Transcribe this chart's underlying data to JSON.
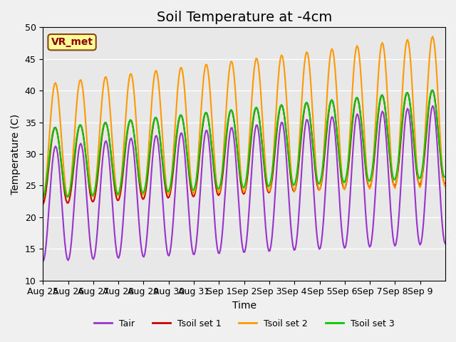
{
  "title": "Soil Temperature at -4cm",
  "xlabel": "Time",
  "ylabel": "Temperature (C)",
  "ylim": [
    10,
    50
  ],
  "n_days": 16,
  "annotation_text": "VR_met",
  "series_colors": {
    "Tair": "#9933cc",
    "Tsoil set 1": "#cc0000",
    "Tsoil set 2": "#ff9900",
    "Tsoil set 3": "#00cc00"
  },
  "series_linewidths": {
    "Tair": 1.5,
    "Tsoil set 1": 1.5,
    "Tsoil set 2": 1.5,
    "Tsoil set 3": 1.5
  },
  "tick_labels": [
    "Aug 25",
    "Aug 26",
    "Aug 27",
    "Aug 28",
    "Aug 29",
    "Aug 30",
    "Aug 31",
    "Sep 1",
    "Sep 2",
    "Sep 3",
    "Sep 4",
    "Sep 5",
    "Sep 6",
    "Sep 7",
    "Sep 8",
    "Sep 9"
  ],
  "background_color": "#e8e8e8",
  "grid_color": "#ffffff",
  "title_fontsize": 14,
  "axis_fontsize": 10,
  "tick_fontsize": 9,
  "legend_fontsize": 9,
  "yticks": [
    10,
    15,
    20,
    25,
    30,
    35,
    40,
    45,
    50
  ]
}
